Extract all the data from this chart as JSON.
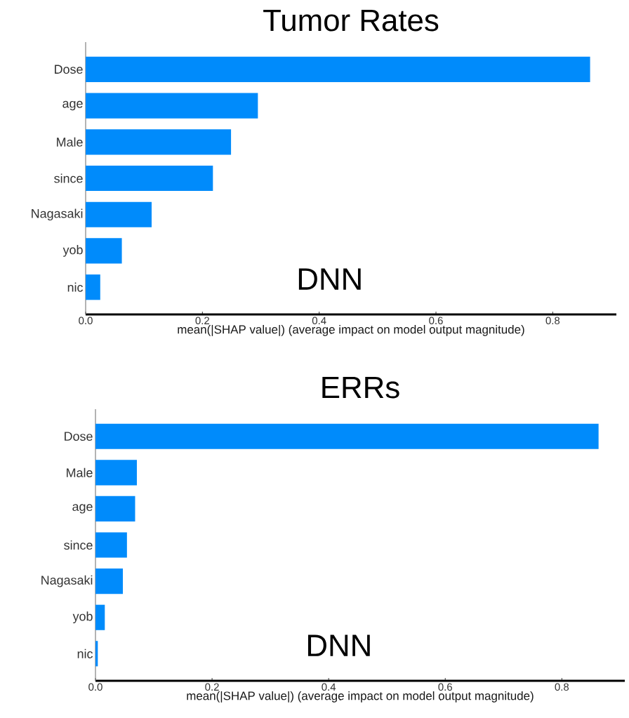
{
  "chart_data": [
    {
      "type": "bar",
      "orientation": "horizontal",
      "title": "Tumor Rates",
      "xlabel": "mean(|SHAP value|) (average impact on model output magnitude)",
      "annotations": [
        "DNN"
      ],
      "color": "#008bfb",
      "categories": [
        "Dose",
        "age",
        "Male",
        "since",
        "Nagasaki",
        "yob",
        "nic"
      ],
      "values": [
        0.864,
        0.295,
        0.249,
        0.218,
        0.113,
        0.062,
        0.025
      ],
      "xlim": [
        0,
        0.909
      ],
      "xticks": [
        {
          "value": 0,
          "label": "0.0"
        },
        0.2,
        0.4,
        0.6,
        0.8
      ]
    },
    {
      "type": "bar",
      "orientation": "horizontal",
      "title": "ERRs",
      "xlabel": "mean(|SHAP value|) (average impact on model output magnitude)",
      "annotations": [
        "DNN"
      ],
      "color": "#008bfb",
      "categories": [
        "Dose",
        "Male",
        "age",
        "since",
        "Nagasaki",
        "yob",
        "nic"
      ],
      "values": [
        0.863,
        0.071,
        0.068,
        0.054,
        0.047,
        0.016,
        0.004
      ],
      "xlim": [
        0,
        0.908
      ],
      "xticks": [
        {
          "value": 0,
          "label": "0.0"
        },
        0.2,
        0.4,
        0.6,
        0.8
      ]
    }
  ]
}
